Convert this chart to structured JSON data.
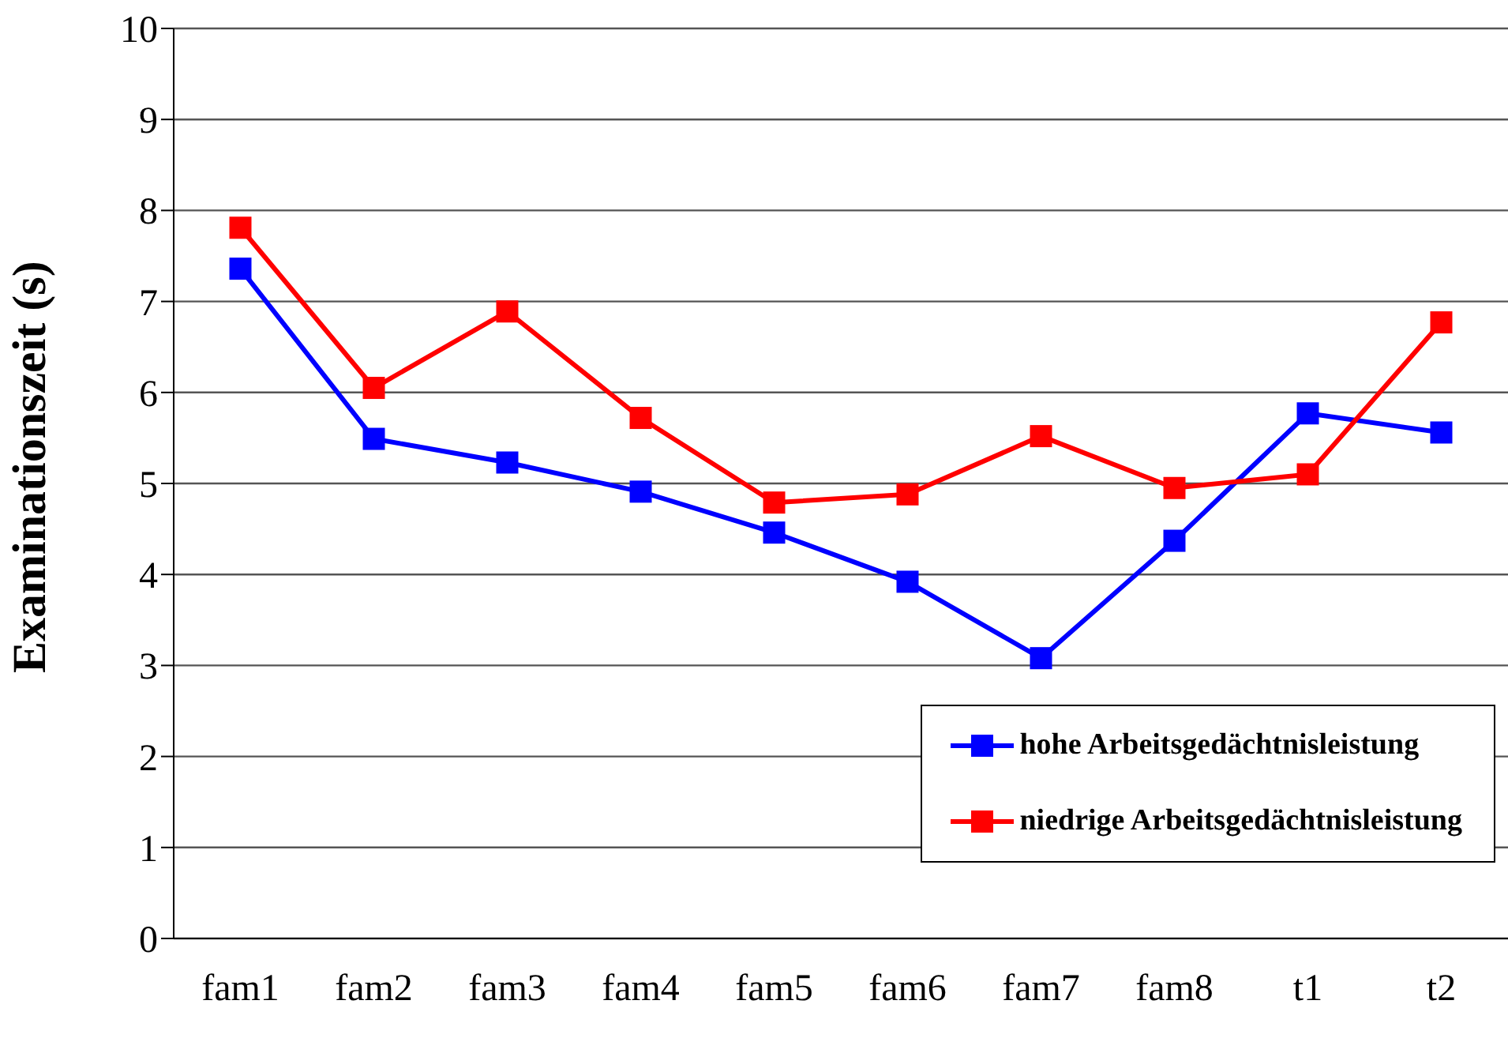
{
  "chart_data": {
    "type": "line",
    "ylabel": "Examinationszeit (s)",
    "categories": [
      "fam1",
      "fam2",
      "fam3",
      "fam4",
      "fam5",
      "fam6",
      "fam7",
      "fam8",
      "t1",
      "t2"
    ],
    "series": [
      {
        "name": "hohe Arbeitsgedächtnisleistung",
        "color": "#0000ff",
        "values": [
          7.36,
          5.49,
          5.23,
          4.91,
          4.46,
          3.92,
          3.08,
          4.37,
          5.77,
          5.56
        ]
      },
      {
        "name": "niedrige Arbeitsgedächtnisleistung",
        "color": "#ff0000",
        "values": [
          7.81,
          6.05,
          6.89,
          5.72,
          4.79,
          4.88,
          5.52,
          4.95,
          5.1,
          6.77
        ]
      }
    ],
    "ylim": [
      0,
      10
    ],
    "yticks": [
      0,
      1,
      2,
      3,
      4,
      5,
      6,
      7,
      8,
      9,
      10
    ],
    "grid": "y",
    "legend": "bottom right",
    "marker": "square",
    "line_style": "solid"
  }
}
